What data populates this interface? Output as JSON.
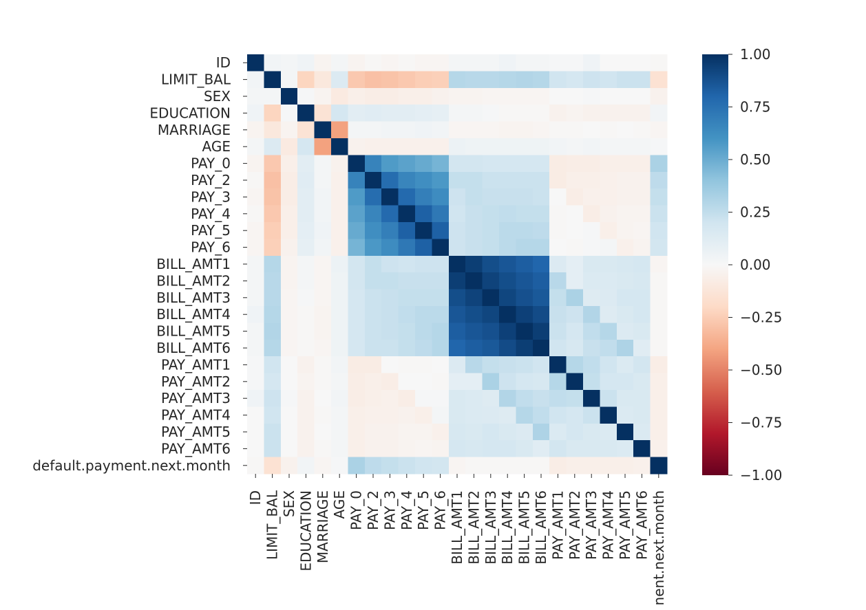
{
  "chart_data": {
    "type": "heatmap",
    "title": "",
    "xlabel": "",
    "ylabel": "",
    "labels": [
      "ID",
      "LIMIT_BAL",
      "SEX",
      "EDUCATION",
      "MARRIAGE",
      "AGE",
      "PAY_0",
      "PAY_2",
      "PAY_3",
      "PAY_4",
      "PAY_5",
      "PAY_6",
      "BILL_AMT1",
      "BILL_AMT2",
      "BILL_AMT3",
      "BILL_AMT4",
      "BILL_AMT5",
      "BILL_AMT6",
      "PAY_AMT1",
      "PAY_AMT2",
      "PAY_AMT3",
      "PAY_AMT4",
      "PAY_AMT5",
      "PAY_AMT6",
      "default.payment.next.month"
    ],
    "x_tick_labels": [
      "ID",
      "LIMIT_BAL",
      "SEX",
      "EDUCATION",
      "MARRIAGE",
      "AGE",
      "PAY_0",
      "PAY_2",
      "PAY_3",
      "PAY_4",
      "PAY_5",
      "PAY_6",
      "BILL_AMT1",
      "BILL_AMT2",
      "BILL_AMT3",
      "BILL_AMT4",
      "BILL_AMT5",
      "BILL_AMT6",
      "PAY_AMT1",
      "PAY_AMT2",
      "PAY_AMT3",
      "PAY_AMT4",
      "PAY_AMT5",
      "PAY_AMT6",
      "nent.next.month"
    ],
    "values": [
      [
        1.0,
        0.03,
        0.02,
        0.04,
        -0.03,
        0.02,
        -0.03,
        -0.01,
        -0.02,
        -0.01,
        -0.02,
        -0.02,
        0.02,
        0.02,
        0.02,
        0.04,
        0.02,
        0.02,
        0.01,
        0.01,
        0.04,
        0.0,
        0.0,
        0.0,
        -0.01
      ],
      [
        0.03,
        1.0,
        0.02,
        -0.22,
        -0.11,
        0.14,
        -0.27,
        -0.3,
        -0.29,
        -0.27,
        -0.25,
        -0.24,
        0.29,
        0.28,
        0.28,
        0.29,
        0.3,
        0.29,
        0.2,
        0.18,
        0.21,
        0.2,
        0.22,
        0.22,
        -0.15
      ],
      [
        0.02,
        0.02,
        1.0,
        0.01,
        -0.03,
        -0.09,
        -0.06,
        -0.07,
        -0.07,
        -0.06,
        -0.06,
        -0.04,
        -0.03,
        -0.03,
        -0.02,
        -0.02,
        -0.02,
        -0.02,
        0.0,
        0.0,
        0.01,
        0.0,
        0.0,
        0.0,
        -0.04
      ],
      [
        0.04,
        -0.22,
        0.01,
        1.0,
        -0.14,
        0.18,
        0.11,
        0.12,
        0.11,
        0.11,
        0.1,
        0.09,
        0.02,
        0.02,
        0.01,
        -0.01,
        -0.01,
        -0.01,
        -0.04,
        -0.03,
        -0.04,
        -0.04,
        -0.04,
        -0.04,
        0.03
      ],
      [
        -0.03,
        -0.11,
        -0.03,
        -0.14,
        1.0,
        -0.41,
        0.02,
        0.02,
        0.03,
        0.03,
        0.04,
        0.03,
        -0.02,
        -0.02,
        -0.02,
        -0.03,
        -0.03,
        -0.02,
        -0.01,
        -0.01,
        -0.0,
        -0.01,
        -0.0,
        -0.01,
        -0.02
      ],
      [
        0.02,
        0.14,
        -0.09,
        0.18,
        -0.41,
        1.0,
        -0.04,
        -0.05,
        -0.05,
        -0.05,
        -0.05,
        -0.05,
        0.06,
        0.05,
        0.05,
        0.05,
        0.05,
        0.05,
        0.03,
        0.02,
        0.03,
        0.02,
        0.02,
        0.02,
        0.01
      ],
      [
        -0.03,
        -0.27,
        -0.06,
        0.11,
        0.02,
        -0.04,
        1.0,
        0.67,
        0.57,
        0.54,
        0.51,
        0.47,
        0.19,
        0.19,
        0.18,
        0.18,
        0.18,
        0.18,
        -0.08,
        -0.07,
        -0.07,
        -0.06,
        -0.06,
        -0.06,
        0.32
      ],
      [
        -0.01,
        -0.3,
        -0.07,
        0.12,
        0.02,
        -0.05,
        0.67,
        1.0,
        0.77,
        0.66,
        0.62,
        0.58,
        0.24,
        0.24,
        0.22,
        0.22,
        0.22,
        0.22,
        -0.08,
        -0.06,
        -0.06,
        -0.05,
        -0.04,
        -0.04,
        0.26
      ],
      [
        -0.02,
        -0.29,
        -0.07,
        0.11,
        0.03,
        -0.05,
        0.57,
        0.77,
        1.0,
        0.78,
        0.69,
        0.63,
        0.21,
        0.24,
        0.23,
        0.23,
        0.23,
        0.22,
        0.0,
        -0.07,
        -0.05,
        -0.05,
        -0.04,
        -0.04,
        0.24
      ],
      [
        -0.01,
        -0.27,
        -0.06,
        0.11,
        0.03,
        -0.05,
        0.54,
        0.66,
        0.78,
        1.0,
        0.82,
        0.72,
        0.2,
        0.23,
        0.24,
        0.25,
        0.24,
        0.24,
        -0.01,
        -0.0,
        -0.07,
        -0.04,
        -0.03,
        -0.03,
        0.22
      ],
      [
        -0.02,
        -0.25,
        -0.06,
        0.1,
        0.04,
        -0.05,
        0.51,
        0.62,
        0.69,
        0.82,
        1.0,
        0.82,
        0.21,
        0.23,
        0.24,
        0.27,
        0.27,
        0.26,
        -0.01,
        -0.0,
        0.01,
        -0.06,
        -0.03,
        -0.02,
        0.2
      ],
      [
        -0.02,
        -0.24,
        -0.04,
        0.09,
        0.03,
        -0.05,
        0.47,
        0.58,
        0.63,
        0.72,
        0.82,
        1.0,
        0.21,
        0.23,
        0.24,
        0.27,
        0.29,
        0.29,
        -0.0,
        -0.01,
        0.01,
        0.02,
        -0.05,
        -0.03,
        0.19
      ],
      [
        0.02,
        0.29,
        -0.03,
        0.02,
        -0.02,
        0.06,
        0.19,
        0.24,
        0.21,
        0.2,
        0.21,
        0.21,
        1.0,
        0.95,
        0.89,
        0.86,
        0.83,
        0.8,
        0.14,
        0.1,
        0.16,
        0.16,
        0.17,
        0.18,
        -0.02
      ],
      [
        0.02,
        0.28,
        -0.03,
        0.02,
        -0.02,
        0.05,
        0.19,
        0.24,
        0.24,
        0.23,
        0.23,
        0.23,
        0.95,
        1.0,
        0.93,
        0.89,
        0.86,
        0.83,
        0.28,
        0.1,
        0.15,
        0.15,
        0.16,
        0.17,
        -0.01
      ],
      [
        0.02,
        0.28,
        -0.02,
        0.01,
        -0.02,
        0.05,
        0.18,
        0.22,
        0.23,
        0.24,
        0.24,
        0.24,
        0.89,
        0.93,
        1.0,
        0.92,
        0.88,
        0.85,
        0.24,
        0.32,
        0.13,
        0.14,
        0.18,
        0.18,
        -0.01
      ],
      [
        0.04,
        0.29,
        -0.02,
        -0.01,
        -0.03,
        0.05,
        0.18,
        0.22,
        0.23,
        0.25,
        0.27,
        0.27,
        0.86,
        0.89,
        0.92,
        1.0,
        0.94,
        0.9,
        0.23,
        0.21,
        0.3,
        0.13,
        0.16,
        0.18,
        -0.01
      ],
      [
        0.02,
        0.3,
        -0.02,
        -0.01,
        -0.03,
        0.05,
        0.18,
        0.22,
        0.23,
        0.24,
        0.27,
        0.29,
        0.83,
        0.86,
        0.88,
        0.94,
        1.0,
        0.95,
        0.22,
        0.18,
        0.25,
        0.29,
        0.14,
        0.16,
        -0.01
      ],
      [
        0.02,
        0.29,
        -0.02,
        -0.01,
        -0.02,
        0.05,
        0.18,
        0.22,
        0.22,
        0.24,
        0.26,
        0.29,
        0.8,
        0.83,
        0.85,
        0.9,
        0.95,
        1.0,
        0.2,
        0.17,
        0.23,
        0.25,
        0.31,
        0.12,
        -0.01
      ],
      [
        0.01,
        0.2,
        0.0,
        -0.04,
        -0.01,
        0.03,
        -0.08,
        -0.08,
        0.0,
        -0.01,
        -0.01,
        -0.0,
        0.14,
        0.28,
        0.24,
        0.23,
        0.22,
        0.2,
        1.0,
        0.29,
        0.25,
        0.2,
        0.15,
        0.19,
        -0.07
      ],
      [
        0.01,
        0.18,
        0.0,
        -0.03,
        -0.01,
        0.02,
        -0.07,
        -0.06,
        -0.07,
        -0.0,
        -0.0,
        -0.01,
        0.1,
        0.1,
        0.32,
        0.21,
        0.18,
        0.17,
        0.29,
        1.0,
        0.24,
        0.18,
        0.18,
        0.16,
        -0.06
      ],
      [
        0.04,
        0.21,
        0.01,
        -0.04,
        -0.0,
        0.03,
        -0.07,
        -0.06,
        -0.05,
        -0.07,
        0.01,
        0.01,
        0.16,
        0.15,
        0.13,
        0.3,
        0.25,
        0.23,
        0.25,
        0.24,
        1.0,
        0.22,
        0.16,
        0.16,
        -0.06
      ],
      [
        0.0,
        0.2,
        0.0,
        -0.04,
        -0.01,
        0.02,
        -0.06,
        -0.05,
        -0.05,
        -0.04,
        -0.06,
        0.02,
        0.16,
        0.15,
        0.14,
        0.13,
        0.29,
        0.25,
        0.2,
        0.18,
        0.22,
        1.0,
        0.15,
        0.16,
        -0.06
      ],
      [
        0.0,
        0.22,
        0.0,
        -0.04,
        -0.0,
        0.02,
        -0.06,
        -0.04,
        -0.04,
        -0.03,
        -0.03,
        -0.05,
        0.17,
        0.16,
        0.18,
        0.16,
        0.14,
        0.31,
        0.15,
        0.18,
        0.16,
        0.15,
        1.0,
        0.15,
        -0.06
      ],
      [
        0.0,
        0.22,
        0.0,
        -0.04,
        -0.01,
        0.02,
        -0.06,
        -0.04,
        -0.04,
        -0.03,
        -0.02,
        -0.03,
        0.18,
        0.17,
        0.18,
        0.18,
        0.16,
        0.12,
        0.19,
        0.16,
        0.16,
        0.16,
        0.15,
        1.0,
        -0.05
      ],
      [
        -0.01,
        -0.15,
        -0.04,
        0.03,
        -0.02,
        0.01,
        0.32,
        0.26,
        0.24,
        0.22,
        0.2,
        0.19,
        -0.02,
        -0.01,
        -0.01,
        -0.01,
        -0.01,
        -0.01,
        -0.07,
        -0.06,
        -0.06,
        -0.06,
        -0.06,
        -0.05,
        1.0
      ]
    ],
    "colorbar": {
      "min": -1.0,
      "max": 1.0,
      "ticks": [
        1.0,
        0.75,
        0.5,
        0.25,
        0.0,
        -0.25,
        -0.5,
        -0.75,
        -1.0
      ],
      "tick_labels": [
        "1.00",
        "0.75",
        "0.50",
        "0.25",
        "0.00",
        "−0.25",
        "−0.50",
        "−0.75",
        "−1.00"
      ],
      "colormap": "RdBu",
      "stops": [
        "#67001f",
        "#b2182b",
        "#d6604d",
        "#f4a582",
        "#fddbc7",
        "#f7f7f7",
        "#d1e5f0",
        "#92c5de",
        "#4393c3",
        "#2166ac",
        "#053061"
      ]
    },
    "legend": "colorbar-right",
    "grid": false
  }
}
